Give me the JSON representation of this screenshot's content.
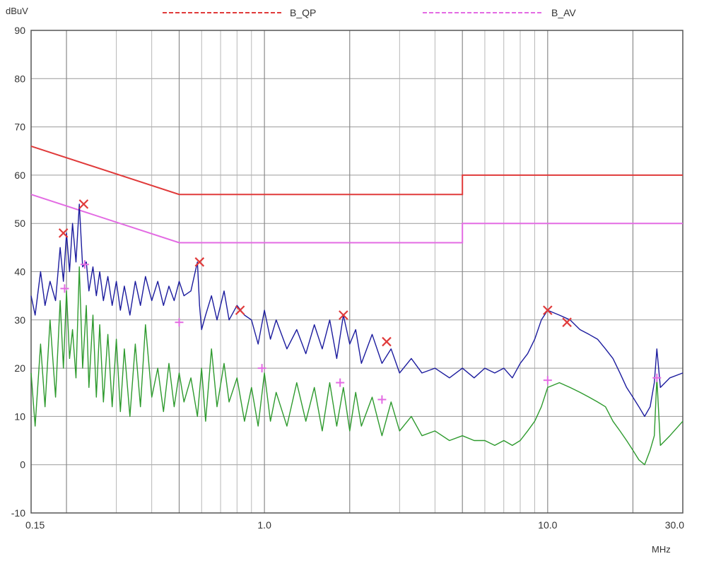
{
  "chart_data": {
    "type": "line",
    "ylabel": "dBuV",
    "xlabel": "MHz",
    "xscale": "log",
    "xlim": [
      0.15,
      30.0
    ],
    "ylim": [
      -10,
      90
    ],
    "grid": true,
    "legend": "top",
    "x_tick_labels": [
      {
        "value": 0.15,
        "label": "0.15"
      },
      {
        "value": 1.0,
        "label": "1.0"
      },
      {
        "value": 10.0,
        "label": "10.0"
      },
      {
        "value": 30.0,
        "label": "30.0"
      }
    ],
    "y_ticks": [
      -10,
      0,
      10,
      20,
      30,
      40,
      50,
      60,
      70,
      80,
      90
    ],
    "limit_lines": [
      {
        "name": "B_QP",
        "color": "#e03a3a",
        "points": [
          [
            0.15,
            66
          ],
          [
            0.5,
            56
          ],
          [
            5.0,
            56
          ],
          [
            5.0,
            60
          ],
          [
            30.0,
            60
          ]
        ]
      },
      {
        "name": "B_AV",
        "color": "#e36be3",
        "points": [
          [
            0.15,
            56
          ],
          [
            0.5,
            46
          ],
          [
            5.0,
            46
          ],
          [
            5.0,
            50
          ],
          [
            30.0,
            50
          ]
        ]
      }
    ],
    "series": [
      {
        "color": "#1c1c9e",
        "x": [
          0.15,
          0.155,
          0.162,
          0.168,
          0.175,
          0.183,
          0.19,
          0.195,
          0.2,
          0.205,
          0.21,
          0.216,
          0.222,
          0.228,
          0.235,
          0.24,
          0.248,
          0.255,
          0.262,
          0.27,
          0.28,
          0.29,
          0.3,
          0.31,
          0.32,
          0.335,
          0.35,
          0.365,
          0.38,
          0.4,
          0.42,
          0.44,
          0.46,
          0.48,
          0.5,
          0.52,
          0.55,
          0.58,
          0.59,
          0.6,
          0.62,
          0.65,
          0.68,
          0.72,
          0.75,
          0.8,
          0.85,
          0.9,
          0.95,
          1.0,
          1.05,
          1.1,
          1.2,
          1.3,
          1.4,
          1.5,
          1.6,
          1.7,
          1.8,
          1.9,
          2.0,
          2.1,
          2.2,
          2.4,
          2.6,
          2.8,
          3.0,
          3.3,
          3.6,
          4.0,
          4.5,
          5.0,
          5.5,
          6.0,
          6.5,
          7.0,
          7.5,
          8.0,
          8.5,
          9.0,
          9.5,
          10.0,
          11.0,
          12.0,
          13.0,
          14.0,
          15.0,
          16.0,
          17.0,
          18.0,
          19.0,
          20.0,
          21.0,
          22.0,
          23.0,
          23.8,
          24.3,
          25.0,
          27.0,
          30.0
        ],
        "values": [
          35,
          31,
          40,
          33,
          38,
          34,
          45,
          38,
          48,
          40,
          50,
          42,
          54,
          41,
          42,
          36,
          41,
          35,
          40,
          34,
          39,
          33,
          38,
          32,
          37,
          31,
          38,
          33,
          39,
          34,
          38,
          33,
          37,
          34,
          38,
          35,
          36,
          42,
          33,
          28,
          31,
          35,
          30,
          36,
          30,
          33,
          31,
          30,
          25,
          32,
          26,
          30,
          24,
          28,
          23,
          29,
          24,
          30,
          22,
          31,
          25,
          28,
          21,
          27,
          21,
          24,
          19,
          22,
          19,
          20,
          18,
          20,
          18,
          20,
          19,
          20,
          18,
          21,
          23,
          26,
          30,
          32,
          31,
          30,
          28,
          27,
          26,
          24,
          22,
          19,
          16,
          14,
          12,
          10,
          12,
          17,
          24,
          16,
          18,
          19
        ]
      },
      {
        "color": "#2e9a2e",
        "x": [
          0.15,
          0.155,
          0.162,
          0.168,
          0.175,
          0.183,
          0.19,
          0.195,
          0.2,
          0.205,
          0.21,
          0.216,
          0.222,
          0.228,
          0.235,
          0.24,
          0.248,
          0.255,
          0.262,
          0.27,
          0.28,
          0.29,
          0.3,
          0.31,
          0.32,
          0.335,
          0.35,
          0.365,
          0.38,
          0.4,
          0.42,
          0.44,
          0.46,
          0.48,
          0.5,
          0.52,
          0.55,
          0.58,
          0.6,
          0.62,
          0.65,
          0.68,
          0.72,
          0.75,
          0.8,
          0.85,
          0.9,
          0.95,
          1.0,
          1.05,
          1.1,
          1.2,
          1.3,
          1.4,
          1.5,
          1.6,
          1.7,
          1.8,
          1.9,
          2.0,
          2.1,
          2.2,
          2.4,
          2.6,
          2.8,
          3.0,
          3.3,
          3.6,
          4.0,
          4.5,
          5.0,
          5.5,
          6.0,
          6.5,
          7.0,
          7.5,
          8.0,
          8.5,
          9.0,
          9.5,
          10.0,
          11.0,
          12.0,
          13.0,
          14.0,
          15.0,
          16.0,
          17.0,
          18.0,
          19.0,
          20.0,
          21.0,
          22.0,
          23.0,
          23.8,
          24.3,
          25.0,
          27.0,
          30.0
        ],
        "values": [
          19,
          8,
          25,
          12,
          30,
          14,
          34,
          20,
          36,
          22,
          28,
          18,
          41,
          20,
          33,
          16,
          31,
          14,
          29,
          13,
          27,
          12,
          26,
          11,
          24,
          10,
          25,
          12,
          29,
          14,
          20,
          11,
          21,
          12,
          19,
          13,
          18,
          10,
          20,
          9,
          24,
          12,
          21,
          13,
          18,
          9,
          16,
          8,
          19,
          9,
          15,
          8,
          17,
          9,
          16,
          7,
          17,
          8,
          16,
          7,
          15,
          8,
          14,
          6,
          13,
          7,
          10,
          6,
          7,
          5,
          6,
          5,
          5,
          4,
          5,
          4,
          5,
          7,
          9,
          12,
          16,
          17,
          16,
          15,
          14,
          13,
          12,
          9,
          7,
          5,
          3,
          1,
          0,
          3,
          6,
          18,
          4,
          6,
          9
        ]
      }
    ],
    "qp_markers": [
      {
        "x": 0.195,
        "y": 48
      },
      {
        "x": 0.23,
        "y": 54
      },
      {
        "x": 0.59,
        "y": 42
      },
      {
        "x": 0.82,
        "y": 32
      },
      {
        "x": 1.9,
        "y": 31
      },
      {
        "x": 2.7,
        "y": 25.5
      },
      {
        "x": 10.0,
        "y": 32
      },
      {
        "x": 11.7,
        "y": 29.5
      }
    ],
    "av_markers": [
      {
        "x": 0.197,
        "y": 36.5
      },
      {
        "x": 0.232,
        "y": 41.5
      },
      {
        "x": 0.5,
        "y": 29.5
      },
      {
        "x": 0.98,
        "y": 20
      },
      {
        "x": 1.85,
        "y": 17
      },
      {
        "x": 2.6,
        "y": 13.5
      },
      {
        "x": 10.0,
        "y": 17.5
      },
      {
        "x": 24.3,
        "y": 18
      }
    ],
    "marker_colors": {
      "qp": "#e03a3a",
      "av": "#e36be3"
    }
  }
}
